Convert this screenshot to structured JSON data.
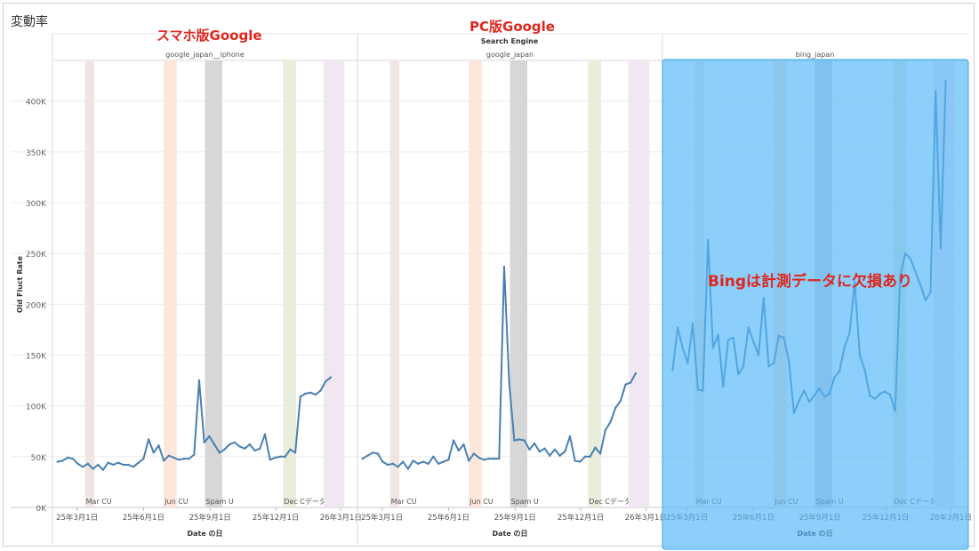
{
  "page": {
    "title": "変動率"
  },
  "annotations": {
    "mobile": "スマホ版Google",
    "pc": "PC版Google",
    "bing": "Bingは計測データに欠損あり"
  },
  "colors": {
    "line": "#4a80b0",
    "highlight": "#56b8f7",
    "callout": "#e0261d",
    "bands": {
      "Mar CU": "#efe6e1",
      "Jun CU": "#fde6da",
      "Spam U": "#d7d7d7",
      "Dec": "#e9eddb",
      "Mar": "#f1e7f2"
    }
  },
  "chart_data": {
    "type": "line",
    "title": "",
    "column_header": "Search Engine",
    "ylabel": "Old Fluct Rate",
    "xlabel": "Date の日",
    "ylim": [
      0,
      440000
    ],
    "yticks": [
      0,
      50000,
      100000,
      150000,
      200000,
      250000,
      300000,
      350000,
      400000
    ],
    "ytick_labels": [
      "0K",
      "50K",
      "100K",
      "150K",
      "200K",
      "250K",
      "300K",
      "350K",
      "400K"
    ],
    "xlim": [
      "2025-01-26",
      "2026-03-24"
    ],
    "xticks": [
      "2025-03-01",
      "2025-06-01",
      "2025-09-01",
      "2025-12-01",
      "2026-03-01"
    ],
    "xtick_labels": [
      "25年3月1日",
      "25年6月1日",
      "25年9月1日",
      "25年12月1日",
      "26年3月1日"
    ],
    "grid": true,
    "bands": [
      {
        "label": "Mar CU",
        "start": "2025-03-12",
        "end": "2025-03-25"
      },
      {
        "label": "Jun CU",
        "start": "2025-06-29",
        "end": "2025-07-17"
      },
      {
        "label": "Spam U",
        "start": "2025-08-25",
        "end": "2025-09-18"
      },
      {
        "label": "Dec Cデータ欠損",
        "start": "2025-12-11",
        "end": "2025-12-29"
      },
      {
        "label": "",
        "start": "2026-02-05",
        "end": "2026-03-06"
      }
    ],
    "panels": [
      {
        "name": "google_japan__iphone",
        "x": [
          "2025-02-02",
          "2025-02-09",
          "2025-02-16",
          "2025-02-23",
          "2025-03-02",
          "2025-03-09",
          "2025-03-16",
          "2025-03-23",
          "2025-03-30",
          "2025-04-06",
          "2025-04-13",
          "2025-04-20",
          "2025-04-27",
          "2025-05-04",
          "2025-05-11",
          "2025-05-18",
          "2025-05-25",
          "2025-06-01",
          "2025-06-08",
          "2025-06-15",
          "2025-06-22",
          "2025-06-29",
          "2025-07-06",
          "2025-07-13",
          "2025-07-20",
          "2025-07-27",
          "2025-08-03",
          "2025-08-10",
          "2025-08-17",
          "2025-08-24",
          "2025-08-31",
          "2025-09-07",
          "2025-09-14",
          "2025-09-21",
          "2025-09-28",
          "2025-10-05",
          "2025-10-12",
          "2025-10-19",
          "2025-10-26",
          "2025-11-02",
          "2025-11-09",
          "2025-11-16",
          "2025-11-23",
          "2025-11-30",
          "2025-12-07",
          "2025-12-14",
          "2025-12-21",
          "2025-12-28",
          "2026-01-04",
          "2026-01-11",
          "2026-01-18",
          "2026-01-25",
          "2026-02-01",
          "2026-02-08",
          "2026-02-15",
          "2026-02-22",
          "2026-03-01",
          "2026-03-08",
          "2026-03-15"
        ],
        "values": [
          45000,
          46000,
          49000,
          48000,
          43000,
          40000,
          43000,
          38000,
          42000,
          37000,
          44000,
          42000,
          44000,
          42000,
          42000,
          40000,
          44000,
          48000,
          67000,
          54000,
          61000,
          46000,
          51000,
          49000,
          47000,
          48000,
          48000,
          52000,
          125000,
          64000,
          70000,
          62000,
          54000,
          57000,
          62000,
          64000,
          60000,
          58000,
          62000,
          56000,
          58000,
          72000,
          47000,
          49000,
          50000,
          50000,
          57000,
          54000,
          109000,
          112000,
          113000,
          111000,
          115000,
          124000,
          128000,
          null,
          null,
          null,
          null
        ]
      },
      {
        "name": "google_japan",
        "x": [
          "2025-02-02",
          "2025-02-09",
          "2025-02-16",
          "2025-02-23",
          "2025-03-02",
          "2025-03-09",
          "2025-03-16",
          "2025-03-23",
          "2025-03-30",
          "2025-04-06",
          "2025-04-13",
          "2025-04-20",
          "2025-04-27",
          "2025-05-04",
          "2025-05-11",
          "2025-05-18",
          "2025-05-25",
          "2025-06-01",
          "2025-06-08",
          "2025-06-15",
          "2025-06-22",
          "2025-06-29",
          "2025-07-06",
          "2025-07-13",
          "2025-07-20",
          "2025-07-27",
          "2025-08-03",
          "2025-08-10",
          "2025-08-17",
          "2025-08-24",
          "2025-08-31",
          "2025-09-07",
          "2025-09-14",
          "2025-09-21",
          "2025-09-28",
          "2025-10-05",
          "2025-10-12",
          "2025-10-19",
          "2025-10-26",
          "2025-11-02",
          "2025-11-09",
          "2025-11-16",
          "2025-11-23",
          "2025-11-30",
          "2025-12-07",
          "2025-12-14",
          "2025-12-21",
          "2025-12-28",
          "2026-01-04",
          "2026-01-11",
          "2026-01-18",
          "2026-01-25",
          "2026-02-01",
          "2026-02-08",
          "2026-02-15",
          "2026-02-22"
        ],
        "values": [
          48000,
          51000,
          54000,
          53000,
          45000,
          42000,
          43000,
          40000,
          45000,
          38000,
          46000,
          43000,
          45000,
          43000,
          50000,
          43000,
          45000,
          47000,
          66000,
          56000,
          62000,
          46000,
          53000,
          49000,
          47000,
          48000,
          48000,
          48000,
          237000,
          122000,
          66000,
          67000,
          66000,
          57000,
          63000,
          55000,
          58000,
          51000,
          57000,
          51000,
          55000,
          70000,
          46000,
          45000,
          50000,
          50000,
          59000,
          53000,
          76000,
          84000,
          98000,
          105000,
          121000,
          123000,
          132000,
          null
        ]
      },
      {
        "name": "bing_japan",
        "x": [
          "2025-02-09",
          "2025-02-16",
          "2025-02-23",
          "2025-03-02",
          "2025-03-09",
          "2025-03-16",
          "2025-03-23",
          "2025-03-30",
          "2025-04-06",
          "2025-04-13",
          "2025-04-20",
          "2025-04-27",
          "2025-05-04",
          "2025-05-11",
          "2025-05-18",
          "2025-05-25",
          "2025-06-01",
          "2025-06-08",
          "2025-06-15",
          "2025-06-22",
          "2025-06-29",
          "2025-07-06",
          "2025-07-13",
          "2025-07-20",
          "2025-07-27",
          "2025-08-03",
          "2025-08-10",
          "2025-08-17",
          "2025-08-24",
          "2025-08-31",
          "2025-09-07",
          "2025-09-14",
          "2025-09-21",
          "2025-09-28",
          "2025-10-05",
          "2025-10-12",
          "2025-10-19",
          "2025-10-26",
          "2025-11-02",
          "2025-11-09",
          "2025-11-16",
          "2025-11-23",
          "2025-11-30",
          "2025-12-07",
          "2025-12-14",
          "2025-12-21",
          "2025-12-28",
          "2026-01-04",
          "2026-01-11",
          "2026-01-18",
          "2026-01-25",
          "2026-02-01",
          "2026-02-08",
          "2026-02-15",
          "2026-02-22",
          "2026-03-01",
          "2026-03-08"
        ],
        "values": [
          135000,
          177000,
          157000,
          142000,
          181000,
          116000,
          115000,
          263000,
          157000,
          170000,
          119000,
          165000,
          167000,
          131000,
          139000,
          177000,
          163000,
          150000,
          206000,
          139000,
          142000,
          169000,
          167000,
          144000,
          93000,
          105000,
          115000,
          104000,
          110000,
          117000,
          109000,
          112000,
          128000,
          134000,
          158000,
          172000,
          222000,
          150000,
          135000,
          110000,
          107000,
          112000,
          114000,
          111000,
          95000,
          228000,
          250000,
          245000,
          232000,
          219000,
          204000,
          212000,
          410000,
          255000,
          420000,
          null,
          null
        ]
      }
    ]
  }
}
